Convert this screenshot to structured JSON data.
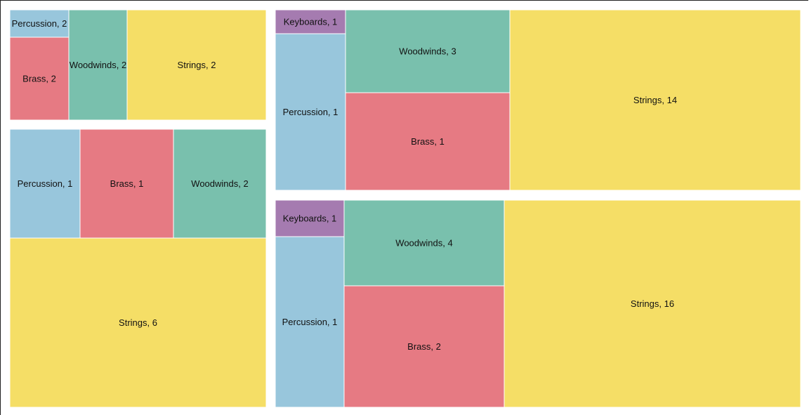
{
  "chart_data": {
    "type": "treemap",
    "colors": {
      "Percussion": "#98c6dc",
      "Brass": "#e67a83",
      "Woodwinds": "#79c0ad",
      "Strings": "#f5de66",
      "Keyboards": "#a57bb0"
    },
    "groups": [
      {
        "cells": [
          {
            "category": "Percussion",
            "value": 2,
            "label": "Percussion, 2"
          },
          {
            "category": "Brass",
            "value": 2,
            "label": "Brass, 2"
          },
          {
            "category": "Woodwinds",
            "value": 2,
            "label": "Woodwinds, 2"
          },
          {
            "category": "Strings",
            "value": 2,
            "label": "Strings, 2"
          }
        ]
      },
      {
        "cells": [
          {
            "category": "Percussion",
            "value": 1,
            "label": "Percussion, 1"
          },
          {
            "category": "Brass",
            "value": 1,
            "label": "Brass, 1"
          },
          {
            "category": "Woodwinds",
            "value": 2,
            "label": "Woodwinds, 2"
          },
          {
            "category": "Strings",
            "value": 6,
            "label": "Strings, 6"
          }
        ]
      },
      {
        "cells": [
          {
            "category": "Keyboards",
            "value": 1,
            "label": "Keyboards, 1"
          },
          {
            "category": "Percussion",
            "value": 1,
            "label": "Percussion, 1"
          },
          {
            "category": "Woodwinds",
            "value": 3,
            "label": "Woodwinds, 3"
          },
          {
            "category": "Brass",
            "value": 1,
            "label": "Brass, 1"
          },
          {
            "category": "Strings",
            "value": 14,
            "label": "Strings, 14"
          }
        ]
      },
      {
        "cells": [
          {
            "category": "Keyboards",
            "value": 1,
            "label": "Keyboards, 1"
          },
          {
            "category": "Percussion",
            "value": 1,
            "label": "Percussion, 1"
          },
          {
            "category": "Woodwinds",
            "value": 4,
            "label": "Woodwinds, 4"
          },
          {
            "category": "Brass",
            "value": 2,
            "label": "Brass, 2"
          },
          {
            "category": "Strings",
            "value": 16,
            "label": "Strings, 16"
          }
        ]
      }
    ]
  }
}
